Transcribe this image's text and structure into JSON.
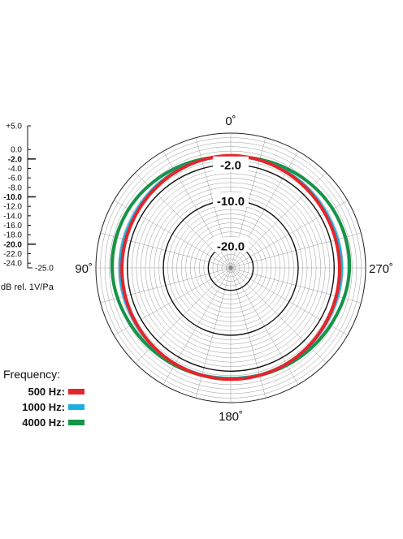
{
  "chart_data": {
    "type": "polar",
    "angle_labels": [
      {
        "angle": 0,
        "label": "0˚"
      },
      {
        "angle": 90,
        "label": "90˚"
      },
      {
        "angle": 180,
        "label": "180˚"
      },
      {
        "angle": 270,
        "label": "270˚"
      }
    ],
    "radial_range": [
      -25,
      5
    ],
    "radial_labels": [
      {
        "value": -2,
        "label": "-2.0"
      },
      {
        "value": -10,
        "label": "-10.0"
      },
      {
        "value": -20,
        "label": "-20.0"
      }
    ],
    "scale_ticks": [
      {
        "value": 5,
        "label": "+5.0",
        "bold": false
      },
      {
        "value": 0,
        "label": "0.0",
        "bold": false
      },
      {
        "value": -2,
        "label": "-2.0",
        "bold": true
      },
      {
        "value": -4,
        "label": "-4.0",
        "bold": false
      },
      {
        "value": -6,
        "label": "-6.0",
        "bold": false
      },
      {
        "value": -8,
        "label": "-8.0",
        "bold": false
      },
      {
        "value": -10,
        "label": "-10.0",
        "bold": true
      },
      {
        "value": -12,
        "label": "-12.0",
        "bold": false
      },
      {
        "value": -14,
        "label": "-14.0",
        "bold": false
      },
      {
        "value": -16,
        "label": "-16.0",
        "bold": false
      },
      {
        "value": -18,
        "label": "-18.0",
        "bold": false
      },
      {
        "value": -20,
        "label": "-20.0",
        "bold": true
      },
      {
        "value": -22,
        "label": "-22.0",
        "bold": false
      },
      {
        "value": -24,
        "label": "-24.0",
        "bold": false
      },
      {
        "value": -25,
        "label": "-25.0",
        "bold": false
      }
    ],
    "units_label": "dB rel. 1V/Pa",
    "legend_title": "Frequency:",
    "grid": true,
    "series": [
      {
        "name": "500 Hz:",
        "color": "#e3262b",
        "angles": [
          0,
          30,
          60,
          90,
          120,
          150,
          180,
          210,
          240,
          270,
          300,
          330
        ],
        "values": [
          0.0,
          -0.4,
          -0.8,
          -0.8,
          -0.6,
          -0.3,
          -0.2,
          -0.3,
          -0.6,
          -0.8,
          -0.8,
          -0.4
        ]
      },
      {
        "name": "1000 Hz:",
        "color": "#1aafe0",
        "angles": [
          0,
          30,
          60,
          90,
          120,
          150,
          180,
          210,
          240,
          270,
          300,
          330
        ],
        "values": [
          -0.1,
          -0.3,
          -0.5,
          -0.4,
          -0.5,
          -0.3,
          -0.3,
          -0.3,
          -0.5,
          -0.4,
          -0.5,
          -0.3
        ]
      },
      {
        "name": "4000 Hz:",
        "color": "#159447",
        "angles": [
          0,
          30,
          60,
          90,
          120,
          150,
          180,
          210,
          240,
          270,
          300,
          330
        ],
        "values": [
          -0.2,
          0.4,
          1.2,
          1.4,
          0.6,
          0.0,
          -0.4,
          0.0,
          0.6,
          1.4,
          1.2,
          0.4
        ]
      }
    ]
  }
}
